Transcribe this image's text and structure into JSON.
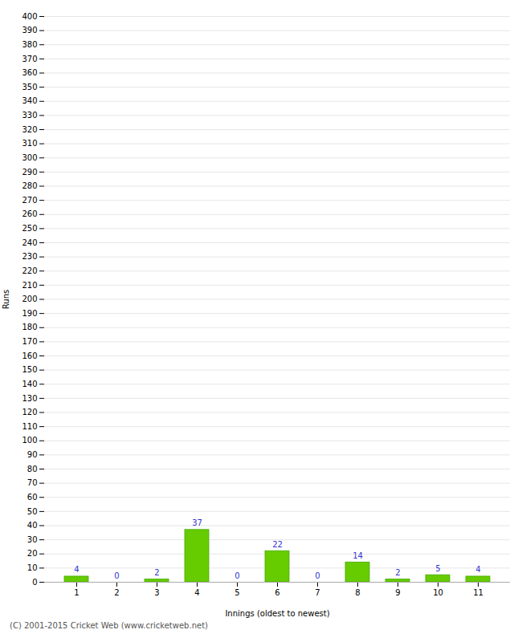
{
  "chart_data": {
    "type": "bar",
    "xlabel": "Innings (oldest to newest)",
    "ylabel": "Runs",
    "categories": [
      "1",
      "2",
      "3",
      "4",
      "5",
      "6",
      "7",
      "8",
      "9",
      "10",
      "11"
    ],
    "values": [
      4,
      0,
      2,
      37,
      0,
      22,
      0,
      14,
      2,
      5,
      4
    ],
    "color": "#66cc00",
    "ylim": [
      0,
      400
    ],
    "yticks": [
      0,
      10,
      20,
      30,
      40,
      50,
      60,
      70,
      80,
      90,
      100,
      110,
      120,
      130,
      140,
      150,
      160,
      170,
      180,
      190,
      200,
      210,
      220,
      230,
      240,
      250,
      260,
      270,
      280,
      290,
      300,
      310,
      320,
      330,
      340,
      350,
      360,
      370,
      380,
      390,
      400
    ],
    "grid": true,
    "data_labels": true,
    "annotations": [
      "(C) 2001-2015 Cricket Web (www.cricketweb.net)"
    ]
  }
}
